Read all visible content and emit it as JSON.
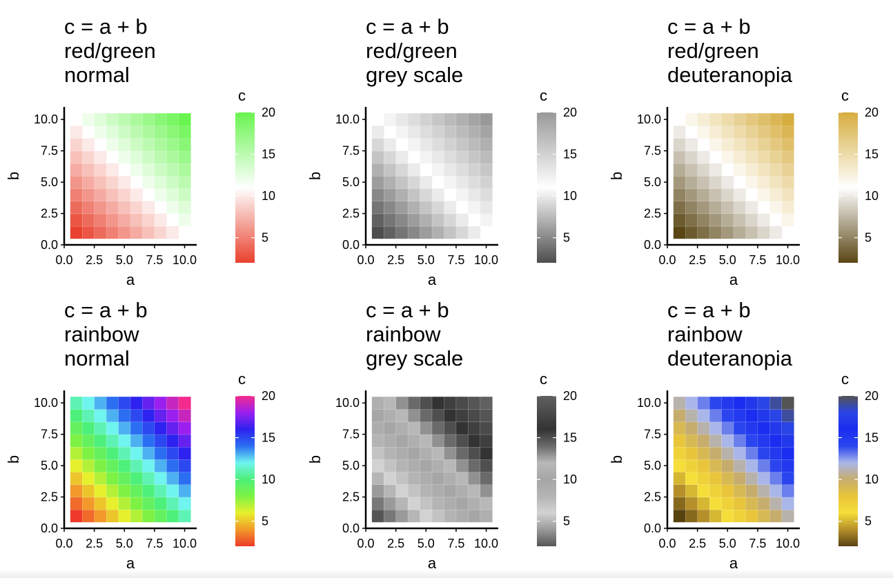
{
  "chart_data": [
    {
      "type": "heatmap",
      "title": [
        "c = a + b",
        "red/green",
        "normal"
      ],
      "xlabel": "a",
      "ylabel": "b",
      "xlim": [
        0,
        11
      ],
      "ylim": [
        0,
        11
      ],
      "xticks": [
        "0.0",
        "2.5",
        "5.0",
        "7.5",
        "10.0"
      ],
      "yticks": [
        "0.0",
        "2.5",
        "5.0",
        "7.5",
        "10.0"
      ],
      "x": [
        1,
        2,
        3,
        4,
        5,
        6,
        7,
        8,
        9,
        10
      ],
      "y": [
        1,
        2,
        3,
        4,
        5,
        6,
        7,
        8,
        9,
        10
      ],
      "value_formula": "c = a + b, cells with c = 11 not shown",
      "legend": {
        "title": "c",
        "labels": [
          "5",
          "10",
          "15",
          "20"
        ],
        "range": [
          2,
          20
        ]
      },
      "colormap": [
        [
          2,
          "#e8412d"
        ],
        [
          11,
          "#ffffff"
        ],
        [
          20,
          "#69f44f"
        ]
      ]
    },
    {
      "type": "heatmap",
      "title": [
        "c = a + b",
        "red/green",
        "grey scale"
      ],
      "xlabel": "a",
      "ylabel": "b",
      "xlim": [
        0,
        11
      ],
      "ylim": [
        0,
        11
      ],
      "xticks": [
        "0.0",
        "2.5",
        "5.0",
        "7.5",
        "10.0"
      ],
      "yticks": [
        "0.0",
        "2.5",
        "5.0",
        "7.5",
        "10.0"
      ],
      "x": [
        1,
        2,
        3,
        4,
        5,
        6,
        7,
        8,
        9,
        10
      ],
      "y": [
        1,
        2,
        3,
        4,
        5,
        6,
        7,
        8,
        9,
        10
      ],
      "value_formula": "c = a + b, cells with c = 11 not shown",
      "legend": {
        "title": "c",
        "labels": [
          "5",
          "10",
          "15",
          "20"
        ],
        "range": [
          2,
          20
        ]
      },
      "colormap": [
        [
          2,
          "#4d4d4d"
        ],
        [
          11,
          "#ffffff"
        ],
        [
          20,
          "#999999"
        ]
      ]
    },
    {
      "type": "heatmap",
      "title": [
        "c = a + b",
        "red/green",
        "deuteranopia"
      ],
      "xlabel": "a",
      "ylabel": "b",
      "xlim": [
        0,
        11
      ],
      "ylim": [
        0,
        11
      ],
      "xticks": [
        "0.0",
        "2.5",
        "5.0",
        "7.5",
        "10.0"
      ],
      "yticks": [
        "0.0",
        "2.5",
        "5.0",
        "7.5",
        "10.0"
      ],
      "x": [
        1,
        2,
        3,
        4,
        5,
        6,
        7,
        8,
        9,
        10
      ],
      "y": [
        1,
        2,
        3,
        4,
        5,
        6,
        7,
        8,
        9,
        10
      ],
      "value_formula": "c = a + b, cells with c = 11 not shown",
      "legend": {
        "title": "c",
        "labels": [
          "5",
          "10",
          "15",
          "20"
        ],
        "range": [
          2,
          20
        ]
      },
      "colormap": [
        [
          2,
          "#5a4614"
        ],
        [
          11,
          "#ffffff"
        ],
        [
          20,
          "#d6ad3f"
        ]
      ]
    },
    {
      "type": "heatmap",
      "title": [
        "c = a + b",
        "rainbow",
        "normal"
      ],
      "xlabel": "a",
      "ylabel": "b",
      "xlim": [
        0,
        11
      ],
      "ylim": [
        0,
        11
      ],
      "xticks": [
        "0.0",
        "2.5",
        "5.0",
        "7.5",
        "10.0"
      ],
      "yticks": [
        "0.0",
        "2.5",
        "5.0",
        "7.5",
        "10.0"
      ],
      "x": [
        1,
        2,
        3,
        4,
        5,
        6,
        7,
        8,
        9,
        10
      ],
      "y": [
        1,
        2,
        3,
        4,
        5,
        6,
        7,
        8,
        9,
        10
      ],
      "value_formula": "c = a + b",
      "legend": {
        "title": "c",
        "labels": [
          "5",
          "10",
          "15",
          "20"
        ],
        "range": [
          2,
          20
        ]
      },
      "colormap": [
        [
          2,
          "#ee3a2a"
        ],
        [
          4,
          "#f2992a"
        ],
        [
          6,
          "#e6f02c"
        ],
        [
          8,
          "#7df244"
        ],
        [
          10,
          "#4df07a"
        ],
        [
          12,
          "#6ff4ef"
        ],
        [
          14,
          "#2b6ef2"
        ],
        [
          16,
          "#2d22ef"
        ],
        [
          18,
          "#9b20ef"
        ],
        [
          20,
          "#f22b8c"
        ]
      ]
    },
    {
      "type": "heatmap",
      "title": [
        "c = a + b",
        "rainbow",
        "grey scale"
      ],
      "xlabel": "a",
      "ylabel": "b",
      "xlim": [
        0,
        11
      ],
      "ylim": [
        0,
        11
      ],
      "xticks": [
        "0.0",
        "2.5",
        "5.0",
        "7.5",
        "10.0"
      ],
      "yticks": [
        "0.0",
        "2.5",
        "5.0",
        "7.5",
        "10.0"
      ],
      "x": [
        1,
        2,
        3,
        4,
        5,
        6,
        7,
        8,
        9,
        10
      ],
      "y": [
        1,
        2,
        3,
        4,
        5,
        6,
        7,
        8,
        9,
        10
      ],
      "value_formula": "c = a + b",
      "legend": {
        "title": "c",
        "labels": [
          "5",
          "10",
          "15",
          "20"
        ],
        "range": [
          2,
          20
        ]
      },
      "colormap": [
        [
          2,
          "#555555"
        ],
        [
          4,
          "#9a9a9a"
        ],
        [
          6,
          "#d2d2d2"
        ],
        [
          8,
          "#b4b4b4"
        ],
        [
          10,
          "#a6a6a6"
        ],
        [
          12,
          "#b8b8b8"
        ],
        [
          14,
          "#6a6a6a"
        ],
        [
          16,
          "#333333"
        ],
        [
          18,
          "#4a4a4a"
        ],
        [
          20,
          "#606060"
        ]
      ]
    },
    {
      "type": "heatmap",
      "title": [
        "c = a + b",
        "rainbow",
        "deuteranopia"
      ],
      "xlabel": "a",
      "ylabel": "b",
      "xlim": [
        0,
        11
      ],
      "ylim": [
        0,
        11
      ],
      "xticks": [
        "0.0",
        "2.5",
        "5.0",
        "7.5",
        "10.0"
      ],
      "yticks": [
        "0.0",
        "2.5",
        "5.0",
        "7.5",
        "10.0"
      ],
      "x": [
        1,
        2,
        3,
        4,
        5,
        6,
        7,
        8,
        9,
        10
      ],
      "y": [
        1,
        2,
        3,
        4,
        5,
        6,
        7,
        8,
        9,
        10
      ],
      "value_formula": "c = a + b",
      "legend": {
        "title": "c",
        "labels": [
          "5",
          "10",
          "15",
          "20"
        ],
        "range": [
          2,
          20
        ]
      },
      "colormap": [
        [
          2,
          "#574310"
        ],
        [
          4,
          "#b58f2a"
        ],
        [
          6,
          "#f5de3a"
        ],
        [
          8,
          "#e8c53a"
        ],
        [
          10,
          "#c6ad6e"
        ],
        [
          12,
          "#a9b6ea"
        ],
        [
          14,
          "#2a45ee"
        ],
        [
          16,
          "#1a2df0"
        ],
        [
          18,
          "#2a45e6"
        ],
        [
          20,
          "#545454"
        ]
      ]
    }
  ]
}
